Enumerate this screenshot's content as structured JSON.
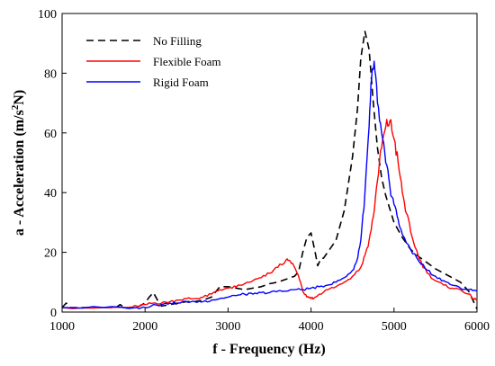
{
  "chart_data": {
    "type": "line",
    "title": "",
    "xlabel": "f - Frequency (Hz)",
    "ylabel_main": "a - Acceleration (m/s",
    "ylabel_sup": "2",
    "ylabel_tail": "N)",
    "xlim": [
      1000,
      6000
    ],
    "ylim": [
      0,
      100
    ],
    "xticks": [
      "1000",
      "2000",
      "3000",
      "4000",
      "5000",
      "6000"
    ],
    "yticks": [
      "0",
      "20",
      "40",
      "60",
      "80",
      "100"
    ],
    "grid": false,
    "legend_placement": "top-left",
    "series": [
      {
        "name": "No Filling",
        "color": "#000000",
        "dash": "dashed",
        "points": [
          [
            1000,
            1.5
          ],
          [
            1050,
            3
          ],
          [
            1100,
            1.5
          ],
          [
            1400,
            1.5
          ],
          [
            1650,
            1.5
          ],
          [
            1700,
            2.5
          ],
          [
            1750,
            1.5
          ],
          [
            1900,
            1.5
          ],
          [
            2000,
            3
          ],
          [
            2050,
            5
          ],
          [
            2100,
            6.5
          ],
          [
            2150,
            4
          ],
          [
            2200,
            2
          ],
          [
            2300,
            2.5
          ],
          [
            2400,
            3
          ],
          [
            2500,
            3.5
          ],
          [
            2600,
            3.5
          ],
          [
            2700,
            4
          ],
          [
            2800,
            5
          ],
          [
            2900,
            8.5
          ],
          [
            3000,
            8.5
          ],
          [
            3100,
            8
          ],
          [
            3200,
            7.5
          ],
          [
            3300,
            8
          ],
          [
            3400,
            8.5
          ],
          [
            3500,
            9.5
          ],
          [
            3600,
            10
          ],
          [
            3700,
            11
          ],
          [
            3800,
            12
          ],
          [
            3850,
            13.5
          ],
          [
            3900,
            20
          ],
          [
            3950,
            25
          ],
          [
            4000,
            26.5
          ],
          [
            4050,
            20
          ],
          [
            4080,
            15.5
          ],
          [
            4120,
            18
          ],
          [
            4150,
            18
          ],
          [
            4200,
            20
          ],
          [
            4300,
            24
          ],
          [
            4400,
            34
          ],
          [
            4500,
            52
          ],
          [
            4560,
            68
          ],
          [
            4600,
            85
          ],
          [
            4650,
            94
          ],
          [
            4700,
            88
          ],
          [
            4750,
            70
          ],
          [
            4800,
            55
          ],
          [
            4850,
            45
          ],
          [
            4900,
            39
          ],
          [
            5000,
            30
          ],
          [
            5100,
            25
          ],
          [
            5200,
            21
          ],
          [
            5300,
            18.5
          ],
          [
            5400,
            16.5
          ],
          [
            5500,
            14.5
          ],
          [
            5600,
            13
          ],
          [
            5700,
            11.5
          ],
          [
            5800,
            10
          ],
          [
            5900,
            7
          ],
          [
            5950,
            4
          ],
          [
            6000,
            1
          ]
        ]
      },
      {
        "name": "Flexible Foam",
        "color": "#ff0000",
        "dash": "solid",
        "points": [
          [
            1000,
            1.5
          ],
          [
            1500,
            1.5
          ],
          [
            1800,
            1.5
          ],
          [
            1900,
            2
          ],
          [
            2000,
            2.5
          ],
          [
            2100,
            3
          ],
          [
            2200,
            3
          ],
          [
            2300,
            3.5
          ],
          [
            2400,
            4
          ],
          [
            2500,
            4.5
          ],
          [
            2600,
            4.5
          ],
          [
            2700,
            5
          ],
          [
            2800,
            6
          ],
          [
            2900,
            7.5
          ],
          [
            3000,
            8
          ],
          [
            3100,
            8.5
          ],
          [
            3200,
            9.5
          ],
          [
            3300,
            10.5
          ],
          [
            3400,
            11.5
          ],
          [
            3500,
            13
          ],
          [
            3600,
            15
          ],
          [
            3700,
            17.5
          ],
          [
            3750,
            17
          ],
          [
            3800,
            15
          ],
          [
            3850,
            12
          ],
          [
            3900,
            7
          ],
          [
            3950,
            5
          ],
          [
            4000,
            4.5
          ],
          [
            4050,
            5
          ],
          [
            4100,
            6
          ],
          [
            4200,
            7.5
          ],
          [
            4300,
            8.5
          ],
          [
            4400,
            10
          ],
          [
            4500,
            12
          ],
          [
            4600,
            15
          ],
          [
            4650,
            19
          ],
          [
            4700,
            24
          ],
          [
            4750,
            32
          ],
          [
            4800,
            44
          ],
          [
            4850,
            55
          ],
          [
            4900,
            62
          ],
          [
            4950,
            64
          ],
          [
            5000,
            58
          ],
          [
            5050,
            50
          ],
          [
            5100,
            40
          ],
          [
            5150,
            33
          ],
          [
            5200,
            27
          ],
          [
            5300,
            18
          ],
          [
            5400,
            13
          ],
          [
            5500,
            10.5
          ],
          [
            5600,
            9
          ],
          [
            5700,
            8
          ],
          [
            5800,
            7.5
          ],
          [
            5900,
            6
          ],
          [
            5950,
            4.5
          ],
          [
            6000,
            4
          ]
        ]
      },
      {
        "name": "Rigid Foam",
        "color": "#0000ff",
        "dash": "solid",
        "points": [
          [
            1000,
            1.5
          ],
          [
            1500,
            1.5
          ],
          [
            1900,
            1.5
          ],
          [
            2000,
            1.5
          ],
          [
            2100,
            2.5
          ],
          [
            2200,
            2.5
          ],
          [
            2300,
            3
          ],
          [
            2400,
            3
          ],
          [
            2500,
            3.5
          ],
          [
            2600,
            3.5
          ],
          [
            2700,
            3.5
          ],
          [
            2800,
            4
          ],
          [
            2900,
            4.5
          ],
          [
            3000,
            5
          ],
          [
            3100,
            5.5
          ],
          [
            3200,
            6
          ],
          [
            3300,
            6
          ],
          [
            3400,
            6.5
          ],
          [
            3500,
            6.5
          ],
          [
            3600,
            7
          ],
          [
            3700,
            7
          ],
          [
            3800,
            7.5
          ],
          [
            3900,
            7.5
          ],
          [
            4000,
            8
          ],
          [
            4100,
            8.5
          ],
          [
            4200,
            9
          ],
          [
            4300,
            10
          ],
          [
            4400,
            11.5
          ],
          [
            4500,
            14
          ],
          [
            4550,
            17
          ],
          [
            4600,
            24
          ],
          [
            4650,
            40
          ],
          [
            4700,
            62
          ],
          [
            4730,
            78
          ],
          [
            4760,
            84
          ],
          [
            4800,
            70
          ],
          [
            4850,
            60
          ],
          [
            4900,
            50
          ],
          [
            4950,
            42
          ],
          [
            5000,
            36
          ],
          [
            5050,
            31
          ],
          [
            5100,
            26
          ],
          [
            5200,
            21
          ],
          [
            5300,
            17
          ],
          [
            5400,
            14
          ],
          [
            5500,
            12
          ],
          [
            5600,
            10.5
          ],
          [
            5700,
            9
          ],
          [
            5800,
            8
          ],
          [
            5900,
            7.5
          ],
          [
            6000,
            7
          ]
        ]
      }
    ]
  }
}
